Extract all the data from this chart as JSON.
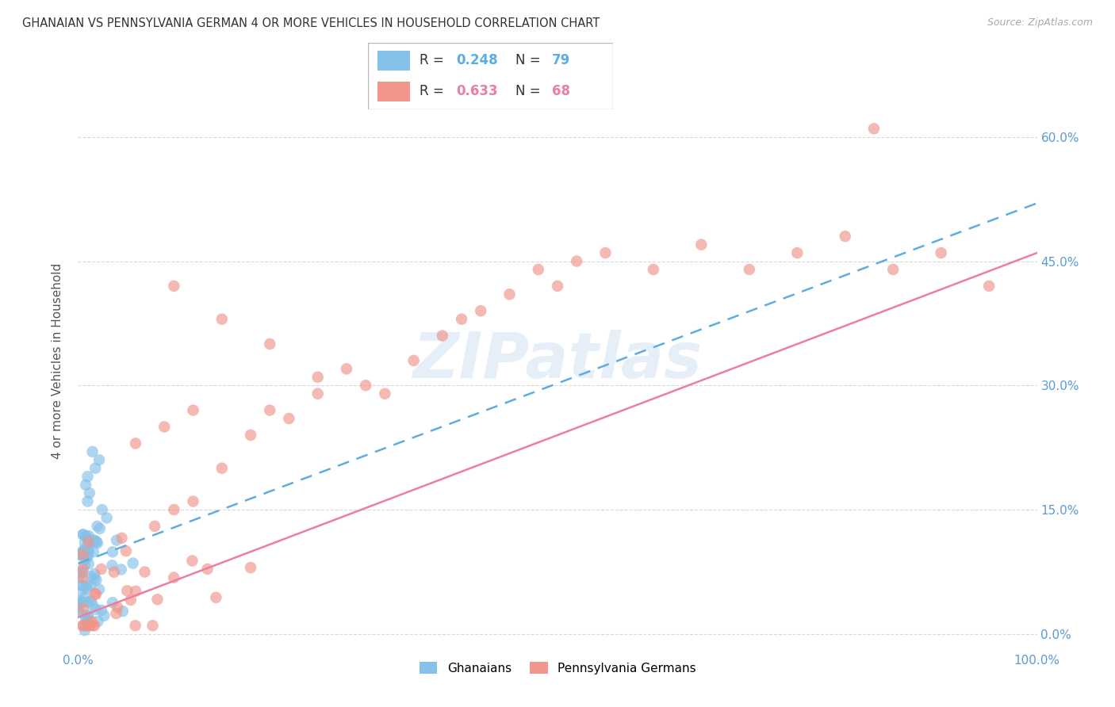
{
  "title": "GHANAIAN VS PENNSYLVANIA GERMAN 4 OR MORE VEHICLES IN HOUSEHOLD CORRELATION CHART",
  "source": "Source: ZipAtlas.com",
  "ylabel": "4 or more Vehicles in Household",
  "watermark": "ZIPatlas",
  "xlim": [
    0.0,
    1.0
  ],
  "ylim": [
    -0.02,
    0.68
  ],
  "ytick_vals": [
    0.0,
    0.15,
    0.3,
    0.45,
    0.6
  ],
  "ytick_labels": [
    "0.0%",
    "15.0%",
    "30.0%",
    "45.0%",
    "60.0%"
  ],
  "xtick_vals": [
    0.0,
    1.0
  ],
  "xtick_labels": [
    "0.0%",
    "100.0%"
  ],
  "blue_R": 0.248,
  "blue_N": 79,
  "pink_R": 0.633,
  "pink_N": 68,
  "blue_color": "#85C1E9",
  "pink_color": "#F1948A",
  "blue_line_color": "#5DADE2",
  "pink_line_color": "#EC7FA0",
  "tick_color": "#5b9bd5",
  "grid_color": "#d0d0d0",
  "legend_label1": "Ghanaians",
  "legend_label2": "Pennsylvania Germans",
  "blue_line_x0": 0.0,
  "blue_line_y0": 0.085,
  "blue_line_x1": 1.0,
  "blue_line_y1": 0.52,
  "pink_line_x0": 0.0,
  "pink_line_y0": 0.02,
  "pink_line_x1": 1.0,
  "pink_line_y1": 0.46
}
